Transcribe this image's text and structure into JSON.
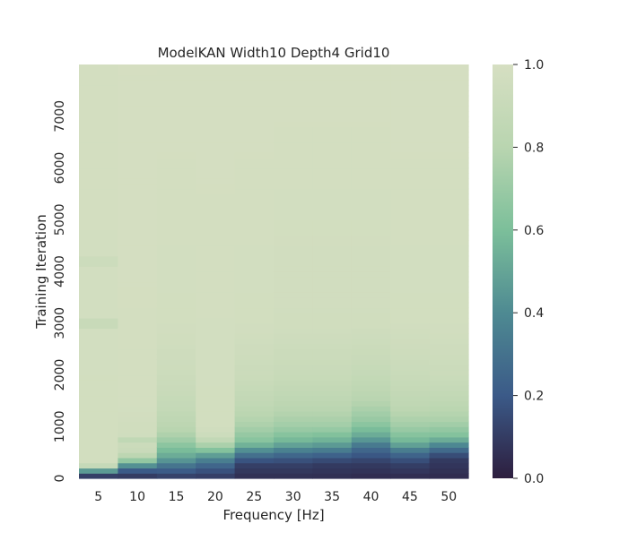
{
  "chart_data": {
    "type": "heatmap",
    "title": "ModelKAN Width10 Depth4 Grid10",
    "xlabel": "Frequency [Hz]",
    "ylabel": "Training Iteration",
    "x_categories": [
      "5",
      "10",
      "15",
      "20",
      "25",
      "30",
      "35",
      "40",
      "45",
      "50"
    ],
    "y_range": [
      0,
      8000
    ],
    "y_ticks": [
      0,
      1000,
      2000,
      3000,
      4000,
      5000,
      6000,
      7000
    ],
    "row_step": 100,
    "value_range": [
      0.0,
      1.0
    ],
    "colorbar_ticks": [
      "0.0",
      "0.2",
      "0.4",
      "0.6",
      "0.8",
      "1.0"
    ],
    "colormap": [
      "#2d1e3e",
      "#3b5a88",
      "#4e8a92",
      "#7cbf9a",
      "#b9d5b0",
      "#d6dfc2"
    ],
    "columns": [
      {
        "frequency": "5",
        "profile": [
          [
            0,
            0.1
          ],
          [
            100,
            0.12
          ],
          [
            200,
            0.8
          ],
          [
            300,
            0.97
          ],
          [
            8000,
            0.98
          ]
        ]
      },
      {
        "frequency": "10",
        "profile": [
          [
            0,
            0.05
          ],
          [
            200,
            0.25
          ],
          [
            300,
            0.6
          ],
          [
            500,
            0.9
          ],
          [
            800,
            0.95
          ],
          [
            1500,
            0.98
          ],
          [
            8000,
            0.99
          ]
        ]
      },
      {
        "frequency": "15",
        "profile": [
          [
            0,
            0.08
          ],
          [
            200,
            0.25
          ],
          [
            400,
            0.5
          ],
          [
            600,
            0.62
          ],
          [
            800,
            0.75
          ],
          [
            1000,
            0.82
          ],
          [
            1400,
            0.88
          ],
          [
            2000,
            0.93
          ],
          [
            3000,
            0.97
          ],
          [
            8000,
            0.99
          ]
        ]
      },
      {
        "frequency": "20",
        "profile": [
          [
            0,
            0.08
          ],
          [
            200,
            0.2
          ],
          [
            400,
            0.4
          ],
          [
            600,
            0.7
          ],
          [
            800,
            0.92
          ],
          [
            1000,
            0.97
          ],
          [
            8000,
            0.99
          ]
        ]
      },
      {
        "frequency": "25",
        "profile": [
          [
            0,
            0.05
          ],
          [
            300,
            0.12
          ],
          [
            500,
            0.35
          ],
          [
            700,
            0.62
          ],
          [
            1000,
            0.75
          ],
          [
            1400,
            0.85
          ],
          [
            2000,
            0.92
          ],
          [
            3000,
            0.97
          ],
          [
            8000,
            0.99
          ]
        ]
      },
      {
        "frequency": "30",
        "profile": [
          [
            0,
            0.05
          ],
          [
            300,
            0.12
          ],
          [
            500,
            0.3
          ],
          [
            700,
            0.55
          ],
          [
            1000,
            0.72
          ],
          [
            1400,
            0.82
          ],
          [
            2000,
            0.9
          ],
          [
            3000,
            0.96
          ],
          [
            8000,
            0.99
          ]
        ]
      },
      {
        "frequency": "35",
        "profile": [
          [
            0,
            0.05
          ],
          [
            300,
            0.1
          ],
          [
            500,
            0.28
          ],
          [
            700,
            0.52
          ],
          [
            1000,
            0.72
          ],
          [
            1400,
            0.82
          ],
          [
            2000,
            0.9
          ],
          [
            3000,
            0.96
          ],
          [
            8000,
            0.99
          ]
        ]
      },
      {
        "frequency": "40",
        "profile": [
          [
            0,
            0.04
          ],
          [
            300,
            0.1
          ],
          [
            600,
            0.28
          ],
          [
            800,
            0.5
          ],
          [
            1100,
            0.68
          ],
          [
            1500,
            0.8
          ],
          [
            2000,
            0.88
          ],
          [
            3000,
            0.96
          ],
          [
            8000,
            0.99
          ]
        ]
      },
      {
        "frequency": "45",
        "profile": [
          [
            0,
            0.04
          ],
          [
            300,
            0.12
          ],
          [
            500,
            0.28
          ],
          [
            700,
            0.55
          ],
          [
            1000,
            0.72
          ],
          [
            1400,
            0.84
          ],
          [
            2000,
            0.91
          ],
          [
            3000,
            0.97
          ],
          [
            8000,
            0.99
          ]
        ]
      },
      {
        "frequency": "50",
        "profile": [
          [
            0,
            0.04
          ],
          [
            400,
            0.1
          ],
          [
            600,
            0.32
          ],
          [
            800,
            0.6
          ],
          [
            1100,
            0.75
          ],
          [
            1500,
            0.85
          ],
          [
            2000,
            0.92
          ],
          [
            3000,
            0.97
          ],
          [
            8000,
            0.99
          ]
        ]
      }
    ],
    "anomalies": [
      {
        "column": "5",
        "from": 2900,
        "to": 3100,
        "value": 0.9
      },
      {
        "column": "5",
        "from": 4100,
        "to": 4300,
        "value": 0.93
      },
      {
        "column": "10",
        "from": 700,
        "to": 800,
        "value": 0.85
      }
    ],
    "grid": false,
    "colorbar_position": "right"
  }
}
